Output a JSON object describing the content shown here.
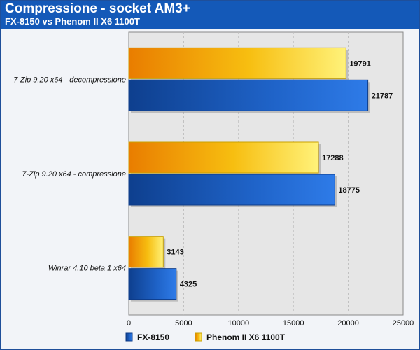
{
  "chart_data": {
    "type": "bar",
    "orientation": "horizontal",
    "title": "Compressione - socket AM3+",
    "subtitle": "FX-8150 vs Phenom II X6 1100T",
    "categories": [
      "7-Zip 9.20 x64 - decompressione",
      "7-Zip 9.20 x64 - compressione",
      "Winrar 4.10 beta 1 x64"
    ],
    "series": [
      {
        "name": "Phenom II X6 1100T",
        "values": [
          19791,
          17288,
          3143
        ],
        "color": "#f5b800"
      },
      {
        "name": "FX-8150",
        "values": [
          21787,
          18775,
          4325
        ],
        "color": "#1b62c8"
      }
    ],
    "xlim": [
      0,
      25000
    ],
    "xticks": [
      0,
      5000,
      10000,
      15000,
      20000,
      25000
    ],
    "grid": true,
    "legend": "bottom"
  }
}
